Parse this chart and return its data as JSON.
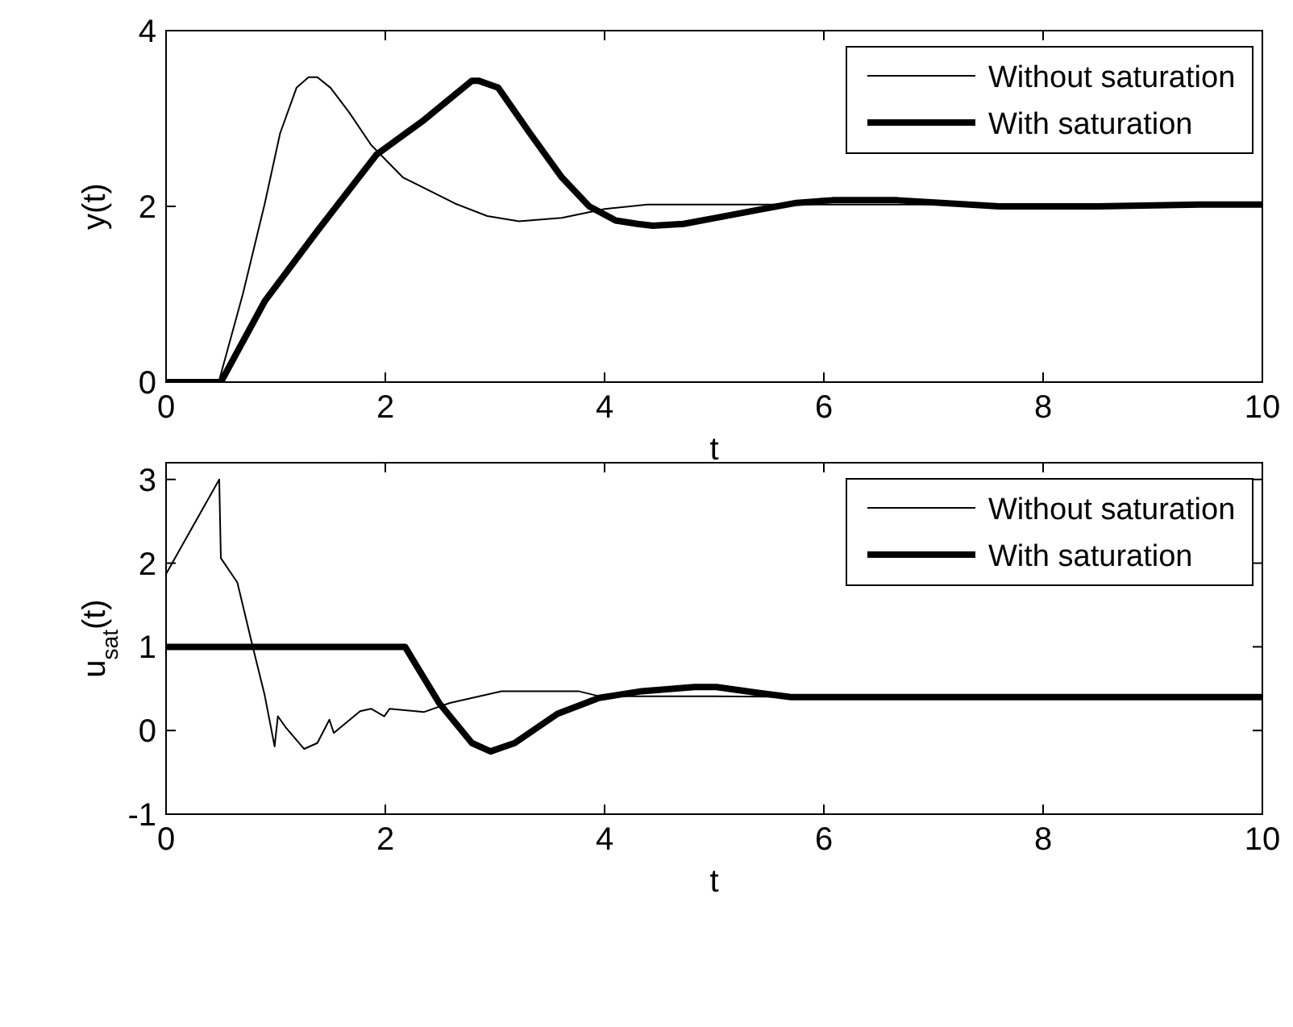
{
  "chart_data": [
    {
      "type": "line",
      "xlabel": "t",
      "ylabel": "y(t)",
      "xlim": [
        0,
        10
      ],
      "ylim": [
        0,
        4
      ],
      "xticks": [
        0,
        2,
        4,
        6,
        8,
        10
      ],
      "yticks": [
        0,
        2,
        4
      ],
      "grid": false,
      "legend": "top right",
      "series": [
        {
          "name": "Without saturation",
          "color": "#000000",
          "x": [
            0,
            0.48,
            0.7,
            0.9,
            1.04,
            1.19,
            1.3,
            1.38,
            1.5,
            1.67,
            1.87,
            2.16,
            2.64,
            2.93,
            3.22,
            3.61,
            4.0,
            4.39,
            5,
            6,
            7,
            8,
            9,
            10
          ],
          "values": [
            0,
            0,
            1.0,
            2.03,
            2.83,
            3.35,
            3.47,
            3.47,
            3.35,
            3.07,
            2.7,
            2.33,
            2.03,
            1.89,
            1.83,
            1.87,
            1.97,
            2.02,
            2.02,
            2.02,
            2.02,
            2.02,
            2.02,
            2.02
          ]
        },
        {
          "name": "With saturation",
          "color": "#000000",
          "x": [
            0,
            0.5,
            0.9,
            1.38,
            1.92,
            2.35,
            2.79,
            2.85,
            3.03,
            3.32,
            3.61,
            3.86,
            4.1,
            4.3,
            4.44,
            4.72,
            5.02,
            5.4,
            5.75,
            6.08,
            6.67,
            7.6,
            8.5,
            9.43,
            10
          ],
          "values": [
            0,
            0,
            0.92,
            1.72,
            2.59,
            2.98,
            3.43,
            3.43,
            3.35,
            2.83,
            2.33,
            2.0,
            1.84,
            1.8,
            1.78,
            1.8,
            1.87,
            1.96,
            2.04,
            2.07,
            2.07,
            2.0,
            2.0,
            2.02,
            2.02
          ]
        }
      ]
    },
    {
      "type": "line",
      "xlabel": "t",
      "ylabel": "u$_{sat}$(t)",
      "xlim": [
        0,
        10
      ],
      "ylim": [
        -1,
        3.2
      ],
      "xticks": [
        0,
        2,
        4,
        6,
        8,
        10
      ],
      "yticks": [
        -1,
        0,
        1,
        2,
        3
      ],
      "grid": false,
      "legend": "top right",
      "series": [
        {
          "name": "Without saturation",
          "color": "#000000",
          "x": [
            0,
            0.485,
            0.5,
            0.65,
            0.78,
            0.9,
            0.99,
            1.02,
            1.09,
            1.26,
            1.38,
            1.49,
            1.53,
            1.77,
            1.87,
            1.99,
            2.04,
            2.35,
            2.59,
            3.06,
            3.76,
            3.95,
            5,
            6,
            7,
            8,
            9,
            10
          ],
          "values": [
            1.87,
            3.0,
            2.06,
            1.77,
            1.06,
            0.42,
            -0.19,
            0.17,
            0.04,
            -0.22,
            -0.15,
            0.13,
            -0.03,
            0.23,
            0.26,
            0.17,
            0.26,
            0.22,
            0.33,
            0.47,
            0.47,
            0.41,
            0.41,
            0.4,
            0.4,
            0.4,
            0.4,
            0.4
          ]
        },
        {
          "name": "With saturation",
          "color": "#000000",
          "x": [
            0,
            2.18,
            2.49,
            2.79,
            2.96,
            3.18,
            3.57,
            3.95,
            4.34,
            4.82,
            5.02,
            5.4,
            5.7,
            6.5,
            7.5,
            8.5,
            10
          ],
          "values": [
            1,
            1,
            0.33,
            -0.15,
            -0.25,
            -0.15,
            0.2,
            0.39,
            0.47,
            0.52,
            0.52,
            0.45,
            0.4,
            0.4,
            0.4,
            0.4,
            0.4
          ]
        }
      ]
    }
  ]
}
